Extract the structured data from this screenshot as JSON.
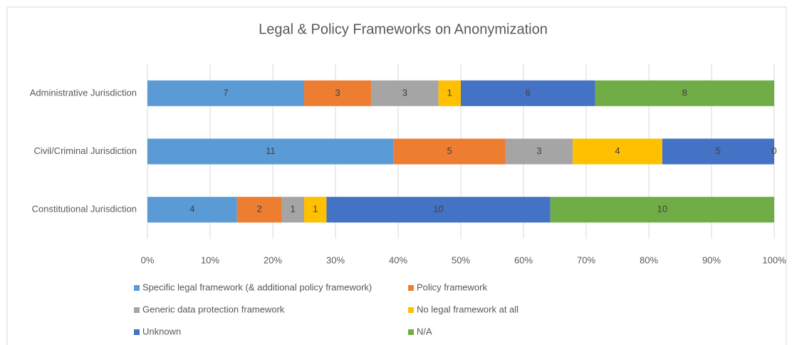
{
  "chart_data": {
    "type": "bar",
    "orientation": "horizontal",
    "stacking": "percent",
    "title": "Legal & Policy Frameworks on Anonymization",
    "categories": [
      "Administrative Jurisdiction",
      "Civil/Criminal Jurisdiction",
      "Constitutional Jurisdiction"
    ],
    "series": [
      {
        "name": "Specific legal framework (& additional policy framework)",
        "color": "#5b9bd5",
        "values": [
          7,
          11,
          4
        ]
      },
      {
        "name": "Policy framework",
        "color": "#ed7d31",
        "values": [
          3,
          5,
          2
        ]
      },
      {
        "name": "Generic data protection framework",
        "color": "#a5a5a5",
        "values": [
          3,
          3,
          1
        ]
      },
      {
        "name": "No legal framework at all",
        "color": "#ffc000",
        "values": [
          1,
          4,
          1
        ]
      },
      {
        "name": "Unknown",
        "color": "#4472c4",
        "values": [
          6,
          5,
          10
        ]
      },
      {
        "name": "N/A",
        "color": "#70ad47",
        "values": [
          8,
          0,
          10
        ]
      }
    ],
    "xlim": [
      0,
      100
    ],
    "xticks": [
      {
        "value": 0,
        "label": "0%"
      },
      {
        "value": 10,
        "label": "10%"
      },
      {
        "value": 20,
        "label": "20%"
      },
      {
        "value": 30,
        "label": "30%"
      },
      {
        "value": 40,
        "label": "40%"
      },
      {
        "value": 50,
        "label": "50%"
      },
      {
        "value": 60,
        "label": "60%"
      },
      {
        "value": 70,
        "label": "70%"
      },
      {
        "value": 80,
        "label": "80%"
      },
      {
        "value": 90,
        "label": "90%"
      },
      {
        "value": 100,
        "label": "100%"
      }
    ],
    "grid": true,
    "legend": "bottom"
  }
}
